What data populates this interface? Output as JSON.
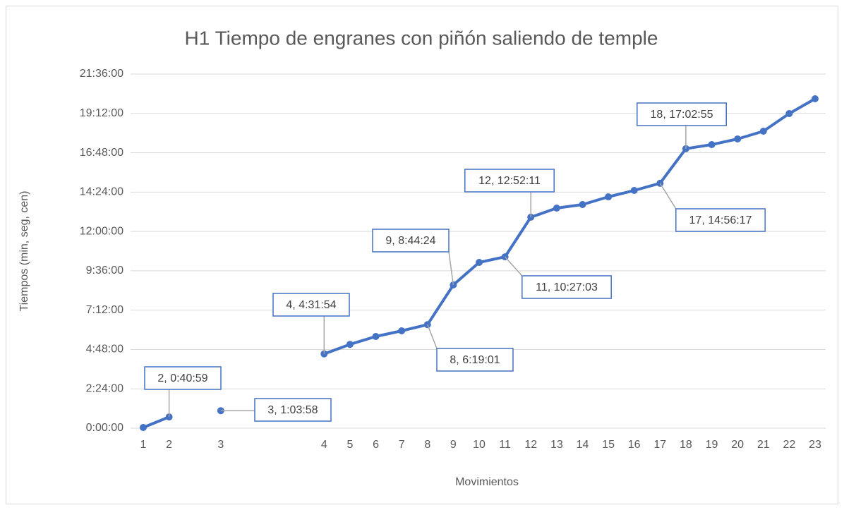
{
  "chart_data": {
    "type": "line",
    "title": "H1 Tiempo de engranes con piñón saliendo de temple",
    "x_label": "Movimientos",
    "y_label": "Tiempos (min, seg, cen)",
    "categories": [
      "1",
      "2",
      null,
      "3",
      null,
      null,
      null,
      "4",
      "5",
      "6",
      "7",
      "8",
      "9",
      "10",
      "11",
      "12",
      "13",
      "14",
      "15",
      "16",
      "17",
      "18",
      "19",
      "20",
      "21",
      "22",
      "23"
    ],
    "series": [
      {
        "name": "H1",
        "color": "#4472c4",
        "values": [
          150,
          2459,
          null,
          3838,
          null,
          null,
          null,
          16314,
          18400,
          20140,
          21380,
          22741,
          31464,
          36400,
          37623,
          46331,
          48330,
          49100,
          50800,
          52200,
          53777,
          61375,
          62270,
          63510,
          65210,
          69090,
          72340
        ],
        "value_labels": [
          null,
          "2, 0:40:59",
          null,
          "3, 1:03:58",
          null,
          null,
          null,
          "4, 4:31:54",
          null,
          null,
          null,
          "8, 6:19:01",
          "9, 8:44:24",
          null,
          "11, 10:27:03",
          "12, 12:52:11",
          null,
          null,
          null,
          null,
          "17, 14:56:17",
          "18, 17:02:55",
          null,
          null,
          null,
          null,
          null
        ]
      }
    ],
    "ylim": [
      0,
      77760
    ],
    "yticks": [
      {
        "value": 0,
        "label": "0:00:00"
      },
      {
        "value": 8640,
        "label": "2:24:00"
      },
      {
        "value": 17280,
        "label": "4:48:00"
      },
      {
        "value": 25920,
        "label": "7:12:00"
      },
      {
        "value": 34560,
        "label": "9:36:00"
      },
      {
        "value": 43200,
        "label": "12:00:00"
      },
      {
        "value": 51840,
        "label": "14:24:00"
      },
      {
        "value": 60480,
        "label": "16:48:00"
      },
      {
        "value": 69120,
        "label": "19:12:00"
      },
      {
        "value": 77760,
        "label": "21:36:00"
      }
    ],
    "grid": true
  }
}
